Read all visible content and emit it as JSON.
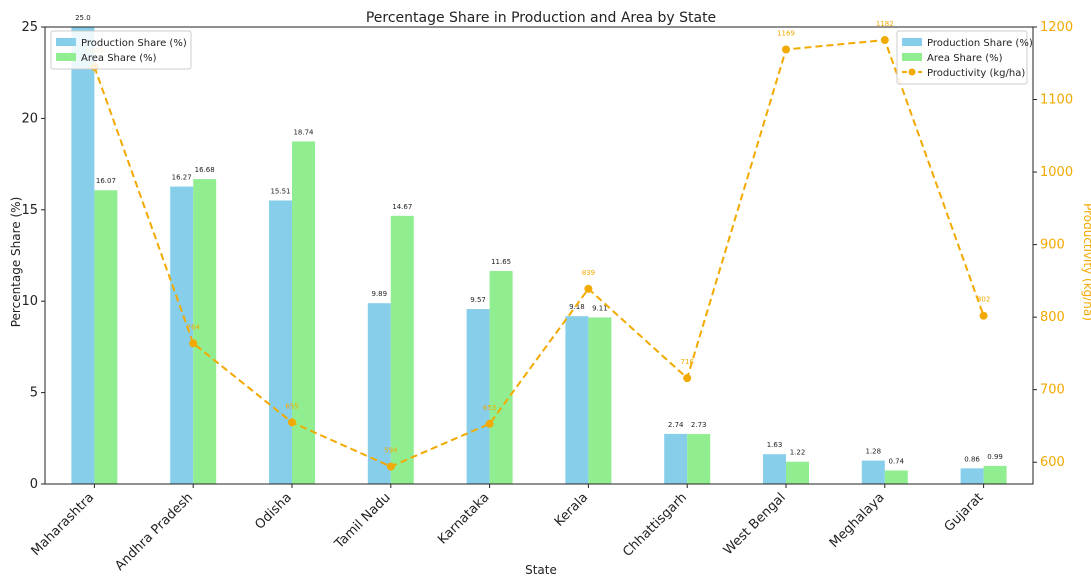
{
  "chart_data": {
    "type": "bar",
    "title": "Percentage Share in Production and Area by State",
    "xlabel": "State",
    "ylabel": "Percentage Share (%)",
    "y2label": "Productivity (kg/ha)",
    "ylim": [
      0,
      25
    ],
    "y2lim": [
      570,
      1200
    ],
    "yticks": [
      0,
      5,
      10,
      15,
      20,
      25
    ],
    "y2ticks": [
      600,
      700,
      800,
      900,
      1000,
      1100,
      1200
    ],
    "categories": [
      "Maharashtra",
      "Andhra Pradesh",
      "Odisha",
      "Tamil Nadu",
      "Karnataka",
      "Kerala",
      "Chhattisgarh",
      "West Bengal",
      "Meghalaya",
      "Gujarat"
    ],
    "series": [
      {
        "name": "Production Share (%)",
        "kind": "bar",
        "axis": "left",
        "color": "#87ceeb",
        "values": [
          25.0,
          16.27,
          15.51,
          9.89,
          9.57,
          9.18,
          2.74,
          1.63,
          1.28,
          0.86
        ],
        "labels": [
          "25.0",
          "16.27",
          "15.51",
          "9.89",
          "9.57",
          "9.18",
          "2.74",
          "1.63",
          "1.28",
          "0.86"
        ]
      },
      {
        "name": "Area Share (%)",
        "kind": "bar",
        "axis": "left",
        "color": "#90ee90",
        "values": [
          16.07,
          16.68,
          18.74,
          14.67,
          11.65,
          9.11,
          2.73,
          1.22,
          0.74,
          0.99
        ],
        "labels": [
          "16.07",
          "16.68",
          "18.74",
          "14.67",
          "11.65",
          "9.11",
          "2.73",
          "1.22",
          "0.74",
          "0.99"
        ]
      },
      {
        "name": "Productivity (kg/ha)",
        "kind": "line",
        "axis": "right",
        "color": "#f2a900",
        "values": [
          1145,
          764,
          655,
          594,
          653,
          839,
          716,
          1169,
          1182,
          802
        ],
        "labels": [
          "1145",
          "764",
          "655",
          "594",
          "653",
          "839",
          "716",
          "1169",
          "1182",
          "802"
        ]
      }
    ],
    "legends": [
      {
        "placement": "top-left",
        "entries": [
          "Production Share (%)",
          "Area Share (%)"
        ]
      },
      {
        "placement": "top-right",
        "entries": [
          "Production Share (%)",
          "Area Share (%)",
          "Productivity (kg/ha)"
        ]
      }
    ],
    "grid": false
  }
}
